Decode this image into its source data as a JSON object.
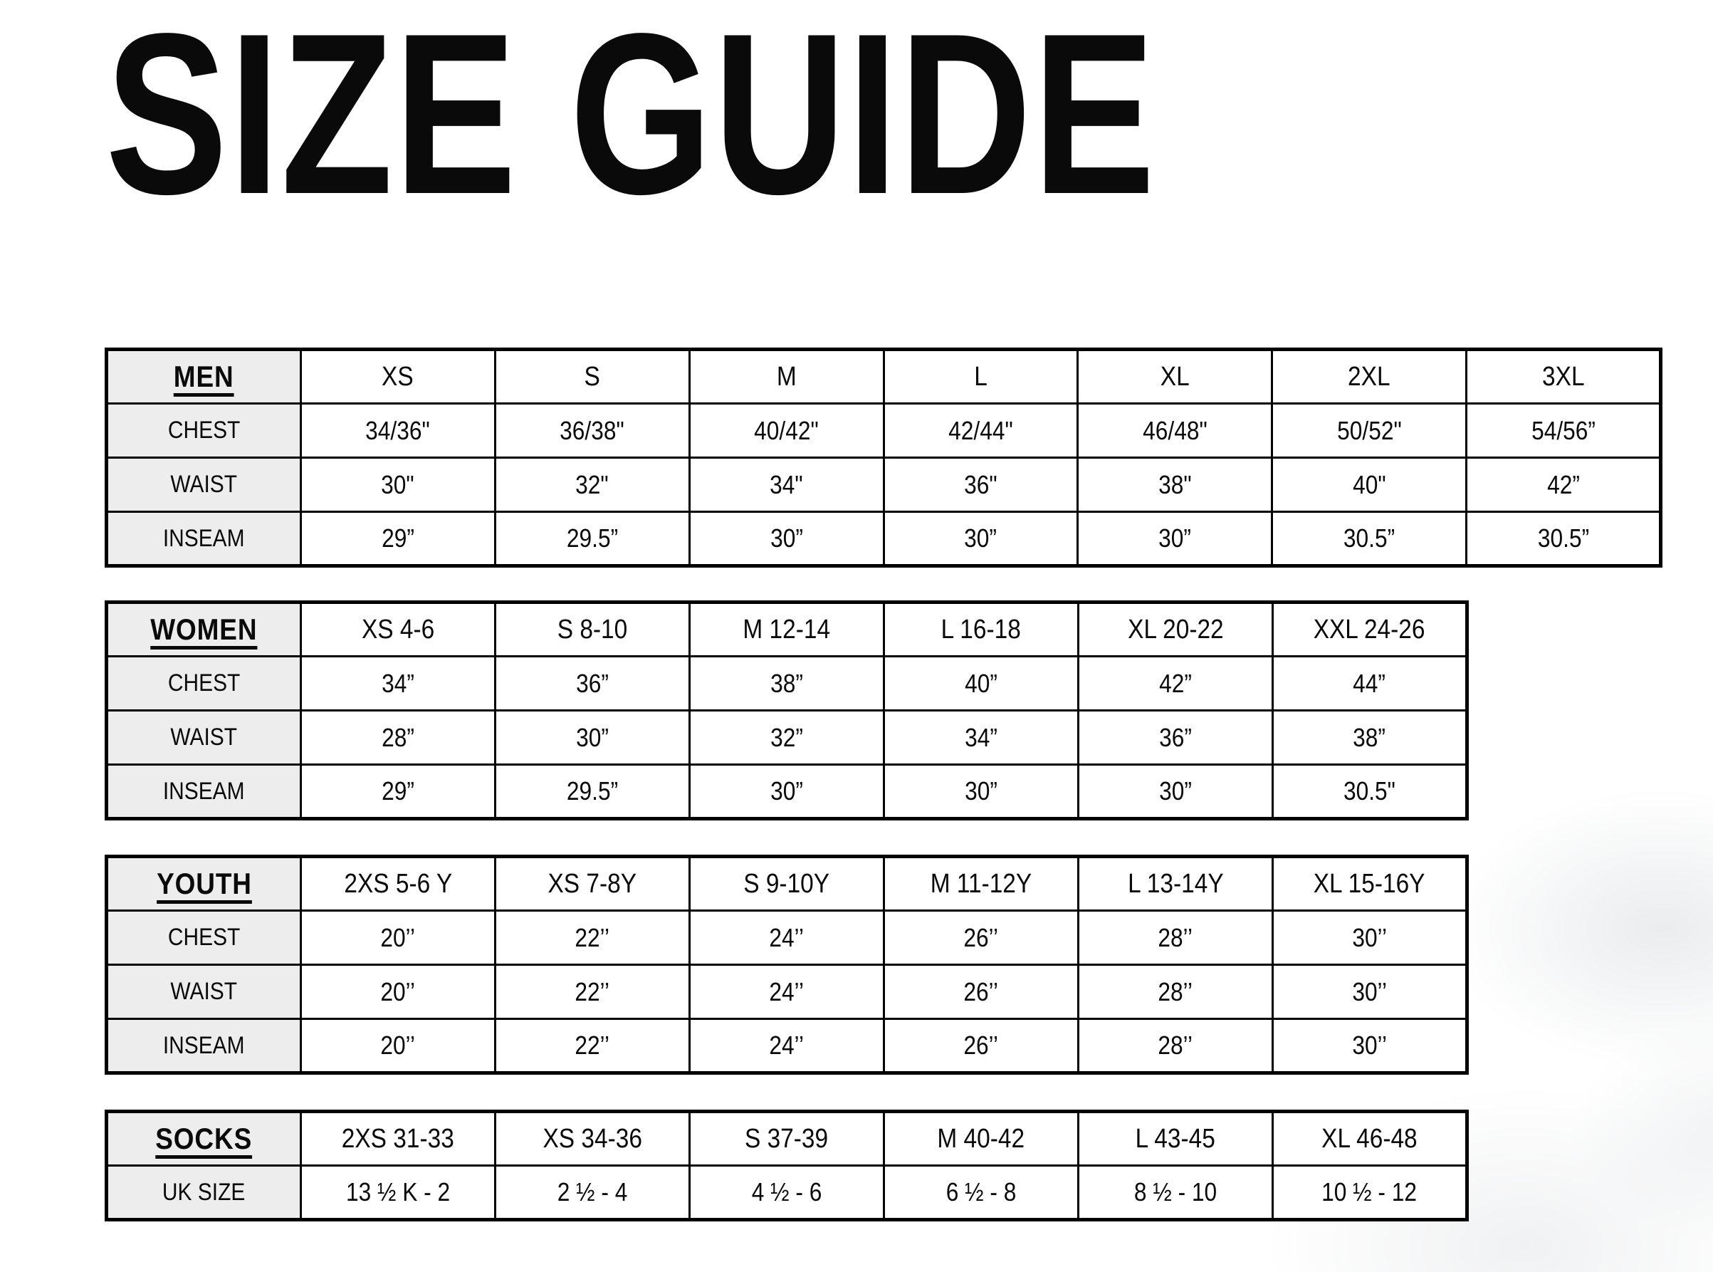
{
  "page": {
    "title": "SIZE GUIDE"
  },
  "colors": {
    "page_bg": "#ffffff",
    "table_border": "#000000",
    "label_column_bg": "#ededed",
    "text": "#0a0a0a"
  },
  "tables": [
    {
      "name": "men",
      "category": "MEN",
      "sizes": [
        "XS",
        "S",
        "M",
        "L",
        "XL",
        "2XL",
        "3XL"
      ],
      "rows": [
        {
          "label": "CHEST",
          "values": [
            "34/36\"",
            "36/38\"",
            "40/42\"",
            "42/44\"",
            "46/48\"",
            "50/52\"",
            "54/56”"
          ]
        },
        {
          "label": "WAIST",
          "values": [
            "30\"",
            "32\"",
            "34\"",
            "36\"",
            "38\"",
            "40\"",
            "42”"
          ]
        },
        {
          "label": "INSEAM",
          "values": [
            "29”",
            "29.5”",
            "30”",
            "30”",
            "30”",
            "30.5”",
            "30.5”"
          ]
        }
      ]
    },
    {
      "name": "women",
      "category": "WOMEN",
      "sizes": [
        "XS 4-6",
        "S 8-10",
        "M 12-14",
        "L 16-18",
        "XL 20-22",
        "XXL 24-26"
      ],
      "rows": [
        {
          "label": "CHEST",
          "values": [
            "34”",
            "36”",
            "38”",
            "40”",
            "42”",
            "44”"
          ]
        },
        {
          "label": "WAIST",
          "values": [
            "28”",
            "30”",
            "32”",
            "34”",
            "36”",
            "38”"
          ]
        },
        {
          "label": "INSEAM",
          "values": [
            "29”",
            "29.5”",
            "30”",
            "30”",
            "30”",
            "30.5\""
          ]
        }
      ]
    },
    {
      "name": "youth",
      "category": "YOUTH",
      "sizes": [
        "2XS 5-6 Y",
        "XS 7-8Y",
        "S 9-10Y",
        "M 11-12Y",
        "L 13-14Y",
        "XL 15-16Y"
      ],
      "rows": [
        {
          "label": "CHEST",
          "values": [
            "20’’",
            "22’’",
            "24’’",
            "26’’",
            "28’’",
            "30’’"
          ]
        },
        {
          "label": "WAIST",
          "values": [
            "20’’",
            "22’’",
            "24’’",
            "26’’",
            "28’’",
            "30’’"
          ]
        },
        {
          "label": "INSEAM",
          "values": [
            "20’’",
            "22’’",
            "24’’",
            "26’’",
            "28’’",
            "30’’"
          ]
        }
      ]
    },
    {
      "name": "socks",
      "category": "SOCKS",
      "sizes": [
        "2XS 31-33",
        "XS 34-36",
        "S 37-39",
        "M 40-42",
        "L 43-45",
        "XL 46-48"
      ],
      "rows": [
        {
          "label": "UK SIZE",
          "values": [
            "13 ½ K - 2",
            "2 ½ - 4",
            "4 ½ - 6",
            "6 ½ - 8",
            "8 ½ - 10",
            "10 ½ - 12"
          ]
        }
      ]
    }
  ]
}
